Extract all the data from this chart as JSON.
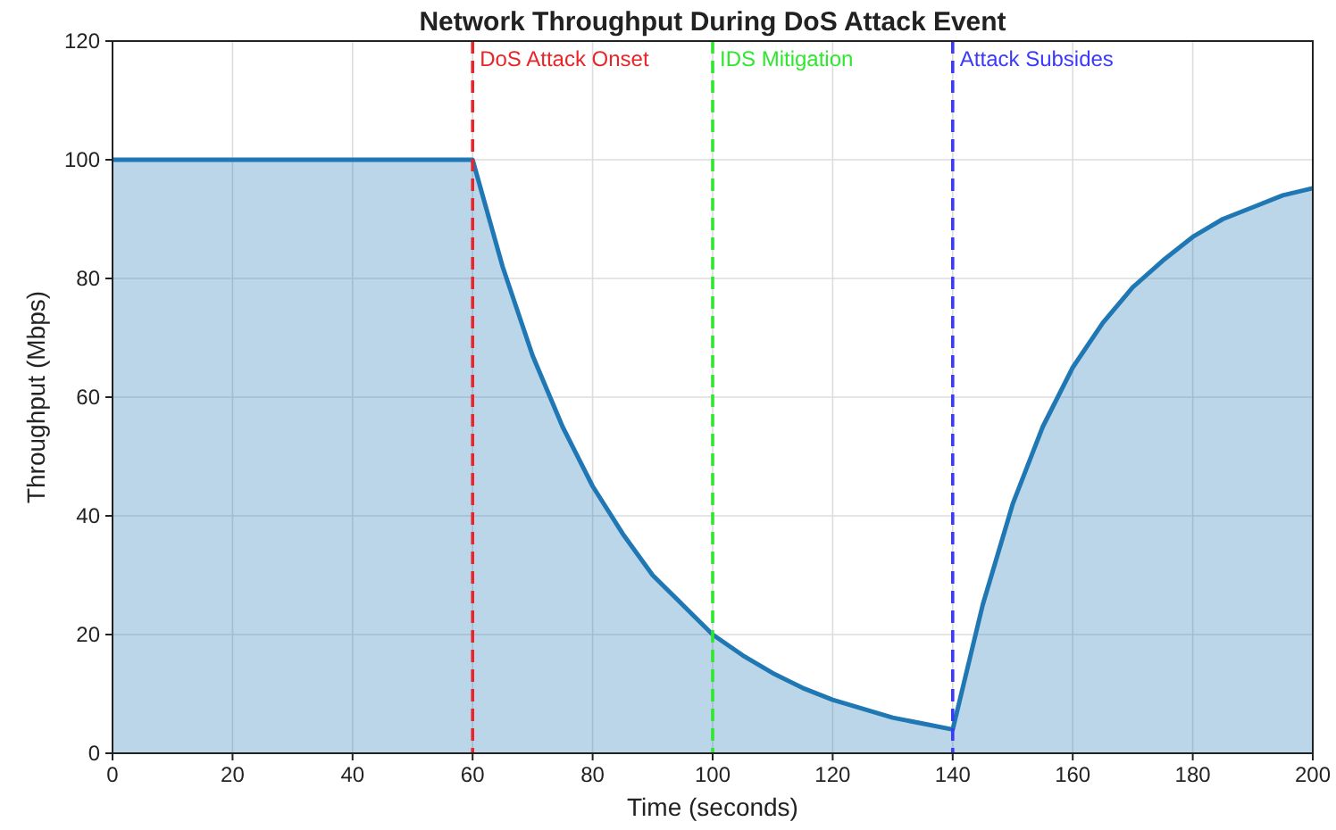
{
  "chart_data": {
    "type": "area",
    "title": "Network Throughput During DoS Attack Event",
    "xlabel": "Time (seconds)",
    "ylabel": "Throughput (Mbps)",
    "x": [
      0,
      60,
      65,
      70,
      75,
      80,
      85,
      90,
      95,
      100,
      105,
      110,
      115,
      120,
      125,
      130,
      135,
      140,
      145,
      150,
      155,
      160,
      165,
      170,
      175,
      180,
      185,
      190,
      195,
      200
    ],
    "series": [
      {
        "color": "#1f77b4",
        "values": [
          100,
          100,
          82,
          67,
          55,
          45,
          37,
          30,
          25,
          20,
          16.5,
          13.5,
          11,
          9,
          7.5,
          6,
          5,
          4,
          25,
          42,
          55,
          65,
          72.5,
          78.5,
          83,
          87,
          90,
          92,
          94,
          95.2
        ]
      }
    ],
    "xlim": [
      0,
      200
    ],
    "ylim": [
      0,
      120
    ],
    "xticks": [
      0,
      20,
      40,
      60,
      80,
      100,
      120,
      140,
      160,
      180,
      200
    ],
    "yticks": [
      0,
      20,
      40,
      60,
      80,
      100,
      120
    ],
    "grid": true,
    "line_style": "solid",
    "ref_lines": [
      {
        "axis": "x",
        "value": 60,
        "label": "DoS Attack Onset",
        "color": "#e8262a",
        "line_style": "dashed"
      },
      {
        "axis": "x",
        "value": 100,
        "label": "IDS Mitigation",
        "color": "#2ee82e",
        "line_style": "dashed"
      },
      {
        "axis": "x",
        "value": 140,
        "label": "Attack Subsides",
        "color": "#3a3aff",
        "line_style": "dashed"
      }
    ]
  }
}
